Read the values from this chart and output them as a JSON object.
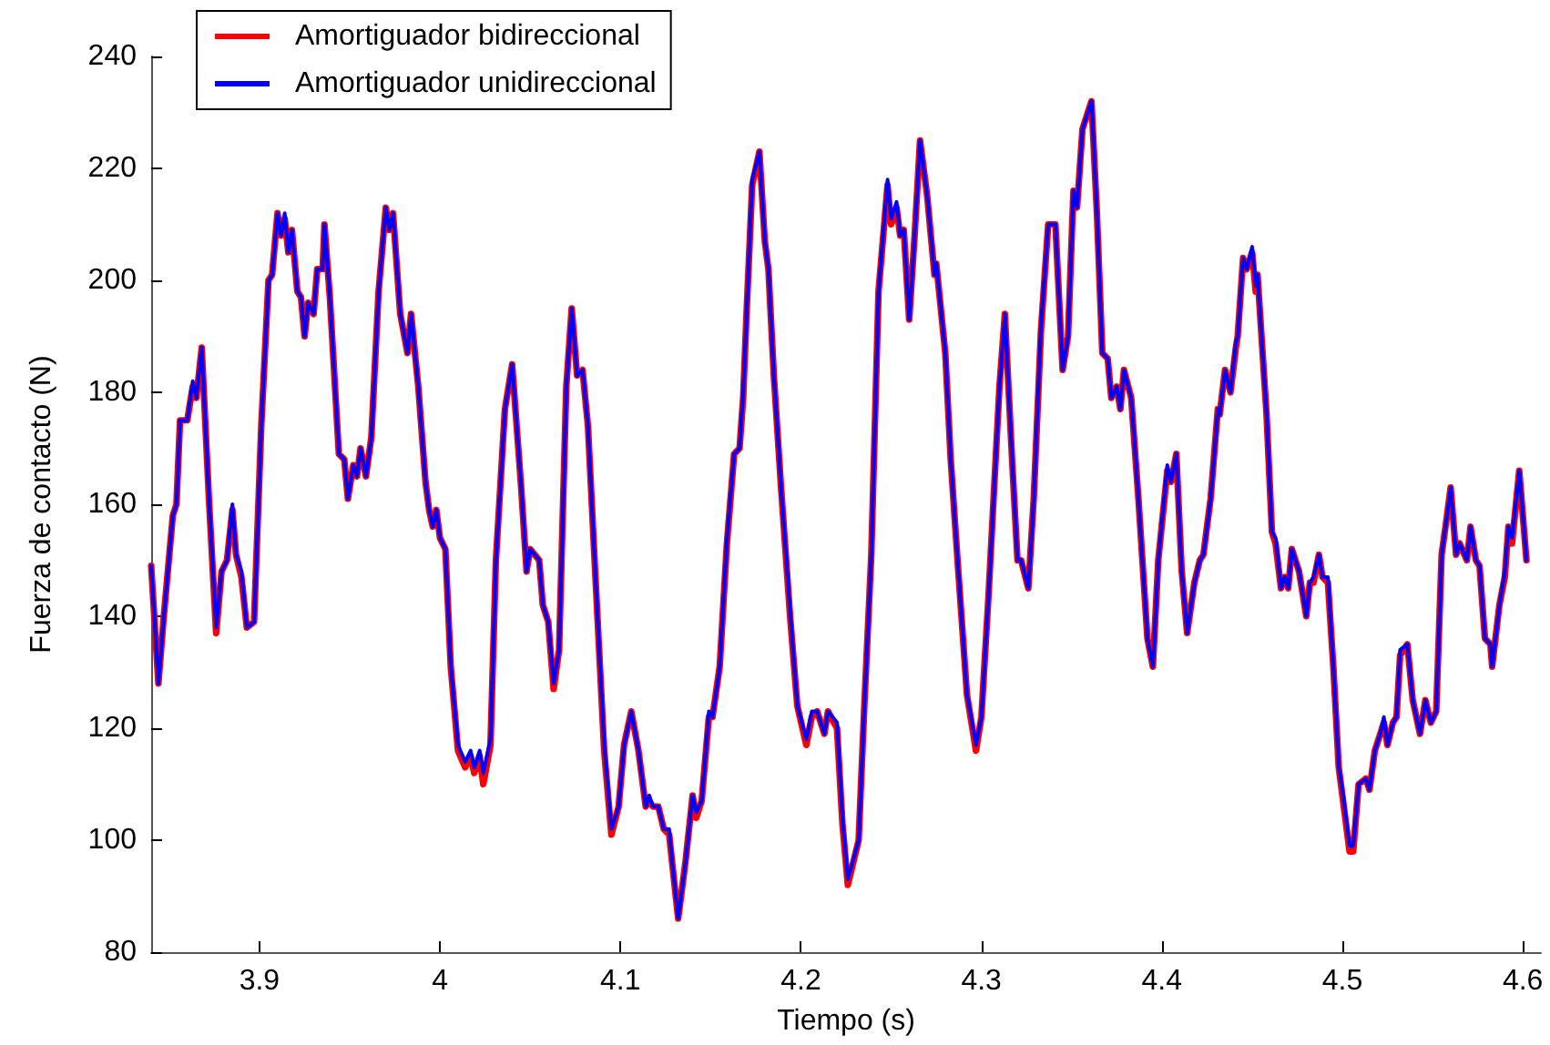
{
  "chart_data": {
    "type": "line",
    "xlabel": "Tiempo (s)",
    "ylabel": "Fuerza de contacto (N)",
    "xlim": [
      3.84,
      4.61
    ],
    "xticks": [
      3.9,
      4,
      4.1,
      4.2,
      4.3,
      4.4,
      4.5,
      4.6
    ],
    "ylim": [
      80,
      240
    ],
    "yticks": [
      80,
      100,
      120,
      140,
      160,
      180,
      200,
      220,
      240
    ],
    "grid": false,
    "legend": "top left",
    "marker": "none",
    "line_style": "solid",
    "x": [
      3.84,
      3.844,
      3.847,
      3.852,
      3.854,
      3.856,
      3.86,
      3.863,
      3.865,
      3.868,
      3.872,
      3.876,
      3.879,
      3.882,
      3.885,
      3.887,
      3.89,
      3.893,
      3.897,
      3.901,
      3.905,
      3.907,
      3.91,
      3.912,
      3.914,
      3.916,
      3.918,
      3.921,
      3.923,
      3.925,
      3.927,
      3.93,
      3.932,
      3.935,
      3.936,
      3.939,
      3.944,
      3.947,
      3.949,
      3.952,
      3.954,
      3.956,
      3.959,
      3.962,
      3.966,
      3.97,
      3.972,
      3.974,
      3.978,
      3.982,
      3.984,
      3.988,
      3.992,
      3.994,
      3.996,
      3.998,
      4.0,
      4.003,
      4.006,
      4.01,
      4.014,
      4.017,
      4.019,
      4.022,
      4.024,
      4.028,
      4.031,
      4.036,
      4.04,
      4.045,
      4.048,
      4.05,
      4.055,
      4.057,
      4.06,
      4.063,
      4.066,
      4.07,
      4.073,
      4.076,
      4.079,
      4.082,
      4.086,
      4.091,
      4.095,
      4.099,
      4.102,
      4.106,
      4.11,
      4.114,
      4.116,
      4.118,
      4.121,
      4.124,
      4.127,
      4.129,
      4.132,
      4.136,
      4.14,
      4.142,
      4.145,
      4.149,
      4.151,
      4.155,
      4.159,
      4.163,
      4.166,
      4.168,
      4.17,
      4.173,
      4.177,
      4.18,
      4.182,
      4.185,
      4.189,
      4.194,
      4.198,
      4.203,
      4.206,
      4.209,
      4.213,
      4.215,
      4.22,
      4.223,
      4.226,
      4.232,
      4.235,
      4.239,
      4.243,
      4.248,
      4.25,
      4.253,
      4.255,
      4.257,
      4.26,
      4.263,
      4.266,
      4.27,
      4.274,
      4.275,
      4.28,
      4.283,
      4.287,
      4.292,
      4.297,
      4.3,
      4.304,
      4.31,
      4.313,
      4.317,
      4.32,
      4.322,
      4.326,
      4.329,
      4.333,
      4.337,
      4.341,
      4.345,
      4.348,
      4.351,
      4.353,
      4.356,
      4.361,
      4.364,
      4.367,
      4.37,
      4.372,
      4.375,
      4.377,
      4.379,
      4.383,
      4.387,
      4.392,
      4.395,
      4.398,
      4.403,
      4.405,
      4.408,
      4.411,
      4.414,
      4.418,
      4.421,
      4.423,
      4.427,
      4.431,
      4.432,
      4.435,
      4.438,
      4.441,
      4.442,
      4.445,
      4.447,
      4.45,
      4.452,
      4.453,
      4.458,
      4.461,
      4.463,
      4.466,
      4.468,
      4.47,
      4.472,
      4.476,
      4.48,
      4.482,
      4.484,
      4.487,
      4.489,
      4.492,
      4.495,
      4.498,
      4.5,
      4.504,
      4.506,
      4.509,
      4.513,
      4.515,
      4.518,
      4.521,
      4.523,
      4.525,
      4.528,
      4.53,
      4.532,
      4.536,
      4.539,
      4.543,
      4.546,
      4.549,
      4.552,
      4.555,
      4.558,
      4.56,
      4.563,
      4.565,
      4.569,
      4.571,
      4.574,
      4.576,
      4.579,
      4.582,
      4.583,
      4.587,
      4.59,
      4.592,
      4.594,
      4.598,
      4.602
    ],
    "series": [
      {
        "name": "Amortiguador bidireccional",
        "color": "#ff0000",
        "values": [
          149,
          128,
          140,
          158,
          160,
          175,
          175,
          181,
          179,
          188,
          161,
          137,
          148,
          150,
          159,
          151,
          147,
          138,
          139,
          174,
          200,
          201,
          212,
          208,
          211,
          205,
          209,
          198,
          197,
          190,
          196,
          194,
          202,
          202,
          210,
          197,
          169,
          168,
          161,
          167,
          165,
          170,
          165,
          172,
          198,
          213,
          209,
          212,
          194,
          187,
          194,
          181,
          164,
          159,
          156,
          159,
          154,
          152,
          131,
          116,
          113,
          115,
          112,
          115,
          110,
          117,
          150,
          177,
          185,
          163,
          148,
          152,
          150,
          142,
          139,
          127,
          134,
          181,
          195,
          183,
          184,
          174,
          148,
          116,
          101,
          106,
          117,
          123,
          116,
          106,
          107,
          106,
          106,
          102,
          101,
          95,
          86,
          96,
          108,
          104,
          107,
          122,
          122,
          131,
          153,
          169,
          170,
          179,
          195,
          217,
          223,
          207,
          202,
          183,
          163,
          140,
          124,
          117,
          122,
          123,
          119,
          123,
          120,
          103,
          92,
          100,
          123,
          151,
          198,
          217,
          210,
          213,
          208,
          209,
          193,
          208,
          225,
          215,
          201,
          203,
          187,
          168,
          149,
          126,
          116,
          122,
          144,
          181,
          194,
          168,
          150,
          150,
          145,
          161,
          191,
          210,
          210,
          184,
          190,
          216,
          213,
          227,
          232,
          212,
          187,
          186,
          179,
          181,
          177,
          184,
          179,
          161,
          136,
          131,
          150,
          166,
          164,
          169,
          148,
          137,
          146,
          150,
          151,
          161,
          177,
          176,
          184,
          180,
          188,
          190,
          204,
          202,
          205,
          198,
          201,
          176,
          155,
          153,
          145,
          147,
          145,
          152,
          148,
          140,
          146,
          146,
          151,
          147,
          146,
          131,
          113,
          108,
          98,
          98,
          110,
          111,
          109,
          116,
          119,
          121,
          117,
          121,
          122,
          133,
          135,
          125,
          119,
          125,
          121,
          123,
          151,
          158,
          163,
          151,
          153,
          150,
          156,
          150,
          149,
          136,
          135,
          131,
          142,
          147,
          156,
          153,
          166,
          150
        ]
      },
      {
        "name": "Amortiguador unidireccional",
        "color": "#0000ff",
        "values": [
          149,
          128,
          140,
          158,
          160,
          175,
          175,
          182,
          179,
          188,
          161,
          138,
          148,
          150,
          160,
          151,
          148,
          138,
          139,
          174,
          200,
          201,
          212,
          208,
          212,
          205,
          209,
          198,
          197,
          190,
          196,
          194,
          202,
          202,
          210,
          197,
          169,
          168,
          161,
          167,
          165,
          170,
          165,
          172,
          198,
          213,
          209,
          212,
          194,
          187,
          194,
          181,
          164,
          159,
          156,
          159,
          154,
          152,
          131,
          117,
          114,
          116,
          113,
          116,
          112,
          118,
          150,
          177,
          185,
          163,
          148,
          152,
          150,
          142,
          139,
          128,
          134,
          181,
          195,
          183,
          184,
          174,
          148,
          117,
          102,
          106,
          117,
          123,
          116,
          106,
          108,
          106,
          106,
          102,
          102,
          95,
          86,
          96,
          108,
          105,
          107,
          123,
          122,
          131,
          154,
          169,
          170,
          180,
          195,
          218,
          223,
          207,
          202,
          183,
          163,
          141,
          124,
          118,
          123,
          123,
          119,
          123,
          121,
          104,
          93,
          100,
          123,
          151,
          198,
          218,
          211,
          214,
          208,
          209,
          193,
          208,
          225,
          215,
          201,
          203,
          187,
          168,
          149,
          126,
          117,
          122,
          144,
          181,
          194,
          168,
          150,
          150,
          145,
          161,
          192,
          210,
          210,
          184,
          190,
          216,
          213,
          227,
          232,
          212,
          187,
          186,
          179,
          181,
          177,
          184,
          179,
          161,
          136,
          131,
          150,
          167,
          164,
          169,
          148,
          137,
          146,
          150,
          151,
          161,
          177,
          176,
          184,
          180,
          189,
          190,
          204,
          202,
          206,
          199,
          201,
          176,
          155,
          154,
          145,
          147,
          145,
          152,
          148,
          140,
          146,
          147,
          151,
          147,
          147,
          131,
          113,
          109,
          99,
          99,
          110,
          111,
          109,
          116,
          119,
          122,
          117,
          121,
          122,
          134,
          135,
          125,
          119,
          125,
          121,
          123,
          151,
          158,
          163,
          151,
          153,
          150,
          156,
          150,
          149,
          136,
          135,
          131,
          142,
          148,
          156,
          154,
          166,
          150
        ]
      }
    ]
  }
}
